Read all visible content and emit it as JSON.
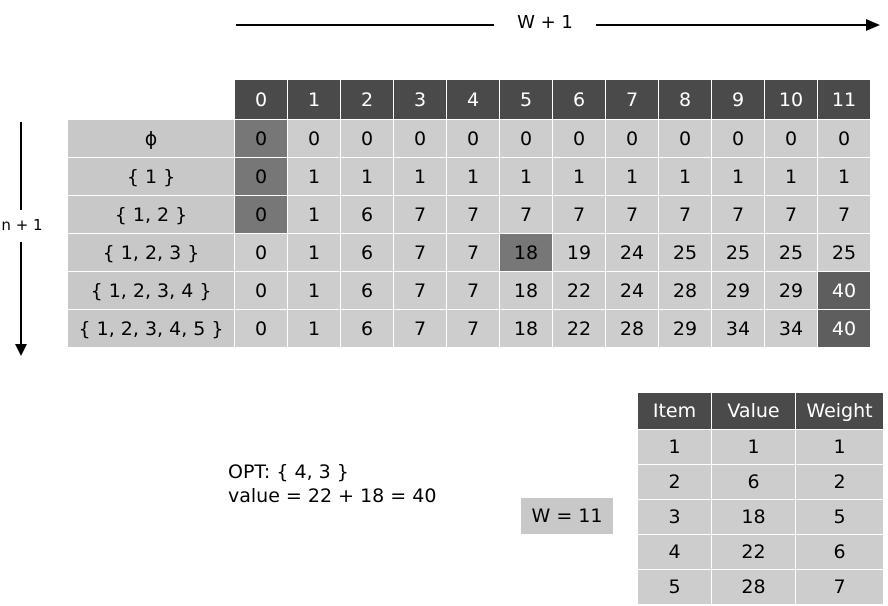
{
  "w_axis_label": "W + 1",
  "n_axis_label": "n + 1",
  "dp_table": {
    "column_headers": [
      "0",
      "1",
      "2",
      "3",
      "4",
      "5",
      "6",
      "7",
      "8",
      "9",
      "10",
      "11"
    ],
    "rows": [
      {
        "label": "ϕ",
        "values": [
          "0",
          "0",
          "0",
          "0",
          "0",
          "0",
          "0",
          "0",
          "0",
          "0",
          "0",
          "0"
        ]
      },
      {
        "label": "{ 1 }",
        "values": [
          "0",
          "1",
          "1",
          "1",
          "1",
          "1",
          "1",
          "1",
          "1",
          "1",
          "1",
          "1"
        ]
      },
      {
        "label": "{ 1, 2 }",
        "values": [
          "0",
          "1",
          "6",
          "7",
          "7",
          "7",
          "7",
          "7",
          "7",
          "7",
          "7",
          "7"
        ]
      },
      {
        "label": "{ 1, 2, 3 }",
        "values": [
          "0",
          "1",
          "6",
          "7",
          "7",
          "18",
          "19",
          "24",
          "25",
          "25",
          "25",
          "25"
        ]
      },
      {
        "label": "{ 1, 2, 3, 4 }",
        "values": [
          "0",
          "1",
          "6",
          "7",
          "7",
          "18",
          "22",
          "24",
          "28",
          "29",
          "29",
          "40"
        ]
      },
      {
        "label": "{ 1, 2, 3, 4, 5 }",
        "values": [
          "0",
          "1",
          "6",
          "7",
          "7",
          "18",
          "22",
          "28",
          "29",
          "34",
          "34",
          "40"
        ]
      }
    ]
  },
  "opt": {
    "line1": "OPT:  { 4, 3 }",
    "line2": "value = 22 + 18 = 40"
  },
  "capacity_label": "W = 11",
  "item_table": {
    "headers": [
      "Item",
      "Value",
      "Weight"
    ],
    "rows": [
      [
        "1",
        "1",
        "1"
      ],
      [
        "2",
        "6",
        "2"
      ],
      [
        "3",
        "18",
        "5"
      ],
      [
        "4",
        "22",
        "6"
      ],
      [
        "5",
        "28",
        "7"
      ]
    ]
  }
}
